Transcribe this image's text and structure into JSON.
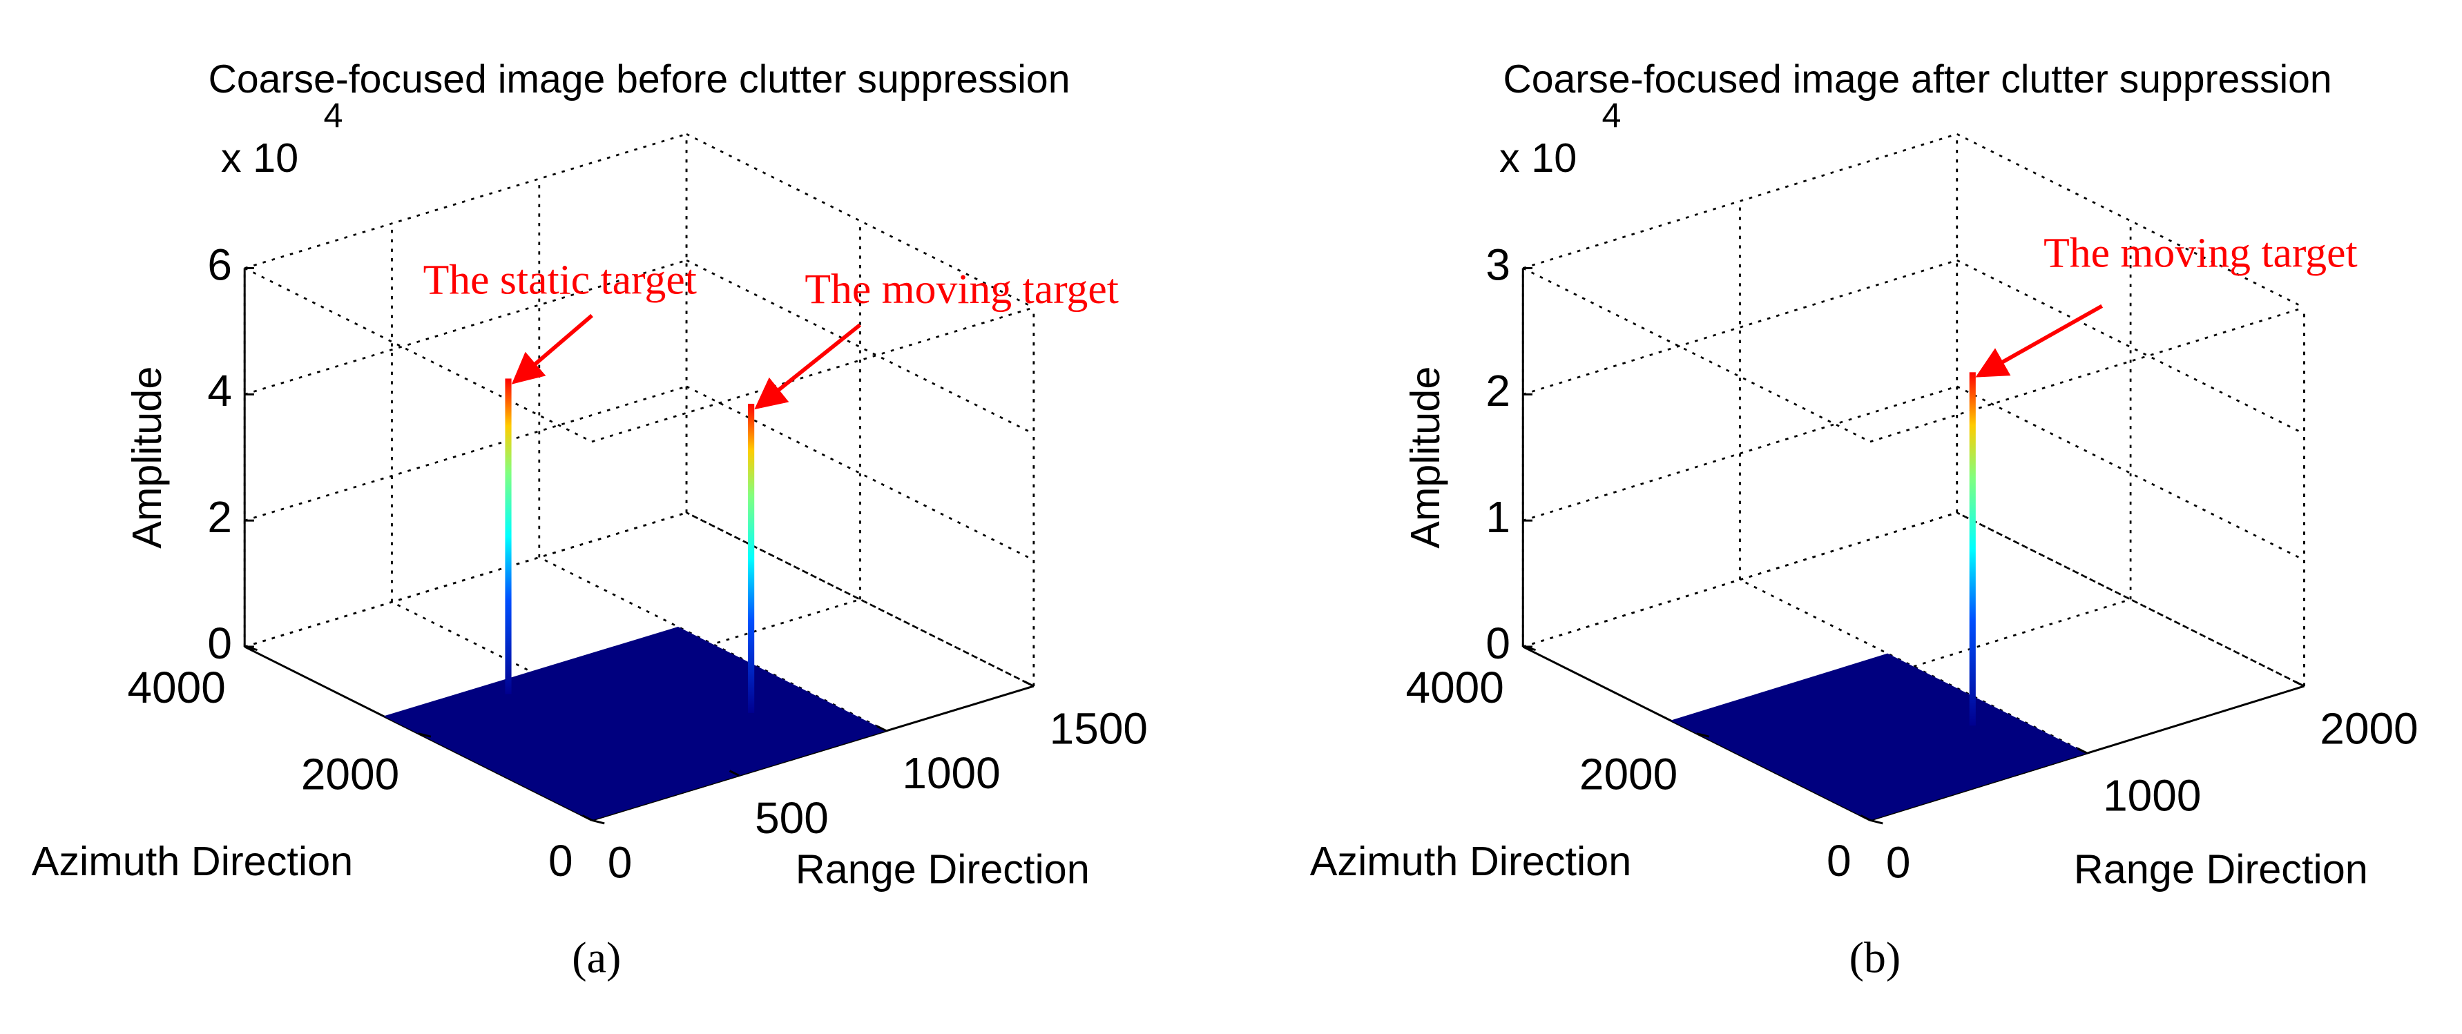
{
  "chart_data": [
    {
      "type": "surface3d",
      "title": "Coarse-focused image before clutter suppression",
      "caption": "(a)",
      "xlabel": "Range Direction",
      "ylabel": "Azimuth Direction",
      "zlabel": "Amplitude",
      "z_multiplier": "x 10",
      "z_exponent": "4",
      "xlim": [
        0,
        1500
      ],
      "xticks": [
        0,
        500,
        1000,
        1500
      ],
      "ylim": [
        0,
        4000
      ],
      "yticks": [
        0,
        2000,
        4000
      ],
      "zlim": [
        0,
        6
      ],
      "zticks": [
        0,
        2,
        4,
        6
      ],
      "grid": true,
      "surface_color": "#00007f",
      "surface": {
        "x": [
          0,
          1000
        ],
        "y": [
          0,
          2400
        ]
      },
      "peaks": {
        "x": [
          357,
          790
        ],
        "y": [
          2174,
          846
        ],
        "z": [
          5.0,
          4.9
        ]
      },
      "annotations": [
        "The static target",
        "The moving target"
      ],
      "annotation_color": "#ff0000"
    },
    {
      "type": "surface3d",
      "title": "Coarse-focused image after clutter suppression",
      "caption": "(b)",
      "xlabel": "Range Direction",
      "ylabel": "Azimuth Direction",
      "zlabel": "Amplitude",
      "z_multiplier": "x 10",
      "z_exponent": "4",
      "xlim": [
        0,
        2000
      ],
      "xticks": [
        0,
        1000,
        2000
      ],
      "ylim": [
        0,
        4000
      ],
      "yticks": [
        0,
        2000,
        4000
      ],
      "zlim": [
        0,
        3
      ],
      "zticks": [
        0,
        1,
        2,
        3
      ],
      "grid": true,
      "surface_color": "#00007f",
      "surface": {
        "x": [
          0,
          1000
        ],
        "y": [
          0,
          2300
        ]
      },
      "peaks": {
        "x": [
          831
        ],
        "y": [
          898
        ],
        "z": [
          2.8
        ]
      },
      "annotations": [
        "The moving target"
      ],
      "annotation_color": "#ff0000"
    }
  ]
}
